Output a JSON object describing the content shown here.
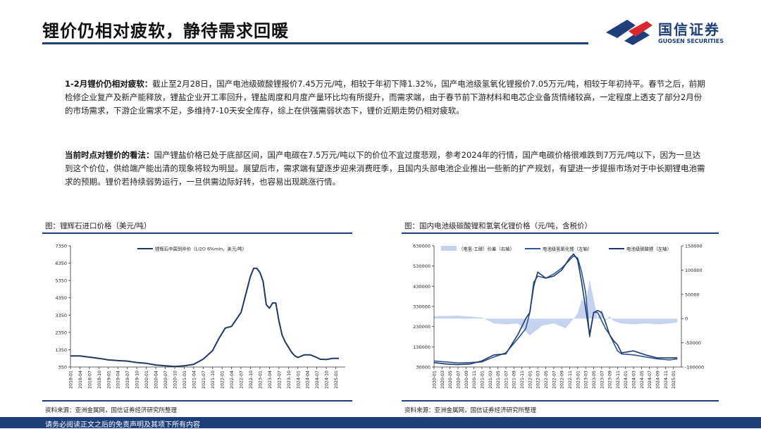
{
  "header": {
    "title": "锂价仍相对疲软，静待需求回暖",
    "logo_cn": "国信证券",
    "logo_en": "GUOSEN SECURITIES"
  },
  "paragraphs": [
    {
      "lead": "1-2月锂价仍相对疲软：",
      "body": "截止至2月28日，国产电池级碳酸锂报价7.45万元/吨，相较于年初下降1.32%，国产电池级氢氧化锂报价7.05万元/吨，相较于年初持平。春节之后，前期检修企业复产及新产能释放，锂盐企业开工率回升，锂盐周度和月度产量环比均有所提升，而需求端，由于春节前下游材料和电芯企业备货情绪较高，一定程度上透支了部分2月份的市场需求，下游企业需求不足，多维持7-10天安全库存，综上在供强需弱状态下，锂价近期走势仍相对疲软。"
    },
    {
      "lead": "当前时点对锂价的看法：",
      "body": "国产锂盐价格已处于底部区间，国产电碳在7.5万元/吨以下的价位不宜过度悲观，参考2024年的行情，国产电碳价格很难跌到7万元/吨以下，因为一旦达到这个价位，供给端产能出清的现象将较为明显。展望后市，需求端有望逐步迎来消费旺季，且国内头部电池企业推出一些新的扩产规划，有望进一步提振市场对于中长期锂电池需求的预期。锂价若持续弱势运行，一旦供需边际好转，也容易出现跳涨行情。"
    }
  ],
  "charts": {
    "left_title": "图：锂辉石进口价格（美元/吨）",
    "right_title": "图：国内电池级碳酸锂和氢氧化锂价格（元/吨，含税价）",
    "left_source": "资料来源：亚洲金属网，国信证券经济研究所整理",
    "right_source": "资料来源：亚洲金属网，国信证券经济研究所整理"
  },
  "footer": {
    "disclaimer": "请务必阅读正文之后的免责声明及其项下所有内容"
  },
  "colors": {
    "brand": "#1e3f7a",
    "accent_red": "#d7282f",
    "navy": "#1f3864",
    "line_blue": "#2e5597",
    "area": "#c5d3ee"
  },
  "chart_data": [
    {
      "type": "line",
      "title": "",
      "xlabel": "",
      "ylabel": "",
      "ylim": [
        350,
        7350
      ],
      "yticks": [
        350,
        1350,
        2350,
        3350,
        4350,
        5350,
        6350,
        7350
      ],
      "xticks": [
        "2018-01",
        "2018-04",
        "2018-07",
        "2018-10",
        "2019-01",
        "2019-04",
        "2019-07",
        "2019-10",
        "2020-01",
        "2020-04",
        "2020-07",
        "2020-10",
        "2021-01",
        "2021-04",
        "2021-07",
        "2021-10",
        "2022-01",
        "2022-04",
        "2022-07",
        "2022-10",
        "2023-01",
        "2023-04",
        "2023-07",
        "2023-10",
        "2024-01",
        "2024-04",
        "2024-07",
        "2024-10",
        "2025-01"
      ],
      "legend_position": "top",
      "series": [
        {
          "name": "锂辉石中国到岸价（Li2O 6%min，美元/吨）",
          "x": [
            "2018-01",
            "2018-04",
            "2018-07",
            "2018-10",
            "2019-01",
            "2019-04",
            "2019-07",
            "2019-10",
            "2020-01",
            "2020-04",
            "2020-07",
            "2020-10",
            "2021-01",
            "2021-04",
            "2021-07",
            "2021-10",
            "2021-12",
            "2022-02",
            "2022-04",
            "2022-07",
            "2022-08",
            "2022-10",
            "2022-11",
            "2022-12",
            "2023-01",
            "2023-02",
            "2023-03",
            "2023-04",
            "2023-05",
            "2023-06",
            "2023-07",
            "2023-08",
            "2023-09",
            "2023-10",
            "2023-11",
            "2023-12",
            "2024-01",
            "2024-03",
            "2024-05",
            "2024-07",
            "2024-08",
            "2024-10",
            "2024-12",
            "2025-02"
          ],
          "values": [
            990,
            990,
            920,
            850,
            760,
            720,
            690,
            610,
            560,
            470,
            420,
            380,
            420,
            500,
            800,
            1300,
            2000,
            2600,
            2700,
            3500,
            4200,
            5600,
            6050,
            6050,
            5800,
            5300,
            3950,
            3750,
            4050,
            4050,
            3000,
            2200,
            1800,
            1500,
            1200,
            1000,
            900,
            1050,
            1050,
            900,
            800,
            780,
            850,
            850
          ]
        }
      ]
    },
    {
      "type": "line",
      "title": "",
      "xlabel": "",
      "ylabel": "",
      "ylim": [
        30000,
        630000
      ],
      "yticks": [
        30000,
        130000,
        230000,
        330000,
        430000,
        530000,
        630000
      ],
      "y2lim": [
        -100000,
        150000
      ],
      "y2ticks": [
        -100000,
        -50000,
        0,
        50000,
        100000,
        150000
      ],
      "xticks": [
        "2020-01",
        "2020-03",
        "2020-05",
        "2020-07",
        "2020-09",
        "2020-11",
        "2021-01",
        "2021-03",
        "2021-05",
        "2021-07",
        "2021-09",
        "2021-11",
        "2022-01",
        "2022-03",
        "2022-05",
        "2022-07",
        "2022-09",
        "2022-11",
        "2023-01",
        "2023-03",
        "2023-05",
        "2023-07",
        "2023-09",
        "2023-11",
        "2024-01",
        "2024-03",
        "2024-05",
        "2024-07",
        "2024-09",
        "2024-11",
        "2025-01"
      ],
      "legend_position": "top",
      "series": [
        {
          "name": "（电氢-工碳）价差（右轴）",
          "type": "area",
          "axis": "right",
          "x": [
            "2020-01",
            "2020-07",
            "2021-01",
            "2021-04",
            "2021-07",
            "2021-10",
            "2022-01",
            "2022-04",
            "2022-07",
            "2022-10",
            "2022-12",
            "2023-01",
            "2023-02",
            "2023-03",
            "2023-04",
            "2023-05",
            "2023-06",
            "2023-07",
            "2023-08",
            "2023-09",
            "2023-10",
            "2023-12",
            "2024-03",
            "2024-06",
            "2024-09",
            "2024-12",
            "2025-02"
          ],
          "values": [
            5000,
            6000,
            2000,
            -10000,
            -12000,
            -10000,
            -35000,
            -15000,
            -10000,
            -20000,
            0,
            10000,
            40000,
            30000,
            80000,
            40000,
            0,
            20000,
            -5000,
            5000,
            -5000,
            -10000,
            -12000,
            -10000,
            -12000,
            -10000,
            -8000
          ]
        },
        {
          "name": "电池级氢氧化锂（左轴）",
          "axis": "left",
          "x": [
            "2020-01",
            "2020-04",
            "2020-07",
            "2020-10",
            "2021-01",
            "2021-04",
            "2021-07",
            "2021-10",
            "2021-12",
            "2022-01",
            "2022-02",
            "2022-03",
            "2022-05",
            "2022-07",
            "2022-09",
            "2022-11",
            "2022-12",
            "2023-01",
            "2023-02",
            "2023-03",
            "2023-04",
            "2023-05",
            "2023-06",
            "2023-07",
            "2023-08",
            "2023-09",
            "2023-10",
            "2023-11",
            "2023-12",
            "2024-03",
            "2024-06",
            "2024-09",
            "2024-12",
            "2025-02"
          ],
          "values": [
            60000,
            55000,
            50000,
            52000,
            55000,
            80000,
            100000,
            170000,
            220000,
            300000,
            450000,
            480000,
            470000,
            490000,
            520000,
            560000,
            580000,
            570000,
            500000,
            400000,
            180000,
            300000,
            300000,
            260000,
            220000,
            190000,
            150000,
            110000,
            95000,
            90000,
            80000,
            70000,
            65000,
            70000
          ]
        },
        {
          "name": "电池级碳酸锂（左轴）",
          "axis": "left",
          "x": [
            "2020-01",
            "2020-04",
            "2020-07",
            "2020-10",
            "2021-01",
            "2021-04",
            "2021-07",
            "2021-10",
            "2021-12",
            "2022-01",
            "2022-02",
            "2022-03",
            "2022-05",
            "2022-07",
            "2022-09",
            "2022-11",
            "2022-12",
            "2023-01",
            "2023-02",
            "2023-03",
            "2023-04",
            "2023-05",
            "2023-06",
            "2023-07",
            "2023-08",
            "2023-09",
            "2023-10",
            "2023-11",
            "2023-12",
            "2024-03",
            "2024-06",
            "2024-09",
            "2024-12",
            "2025-02"
          ],
          "values": [
            52000,
            45000,
            42000,
            45000,
            60000,
            90000,
            95000,
            190000,
            270000,
            300000,
            430000,
            500000,
            470000,
            480000,
            510000,
            570000,
            590000,
            560000,
            450000,
            320000,
            190000,
            300000,
            310000,
            300000,
            250000,
            190000,
            160000,
            140000,
            100000,
            110000,
            90000,
            75000,
            75000,
            75000
          ]
        }
      ]
    }
  ]
}
